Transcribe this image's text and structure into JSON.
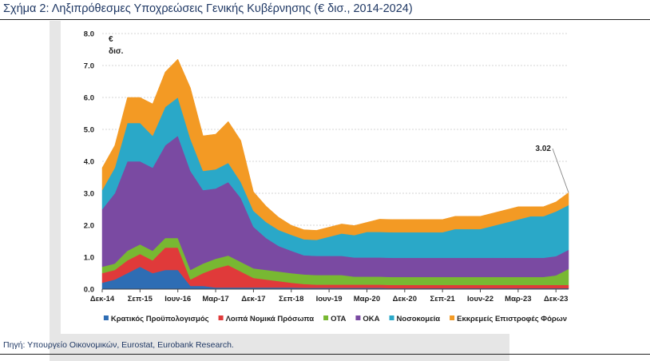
{
  "figure": {
    "title": "Σχήμα 2: Ληξιπρόθεσμες Υποχρεώσεις Γενικής Κυβέρνησης (€ δισ., 2014-2024)",
    "source": "Πηγή: Υπουργείο Οικονομικών, Eurostat, Eurobank Research."
  },
  "chart_data": {
    "type": "area",
    "stacked": true,
    "y_unit_line1": "€",
    "y_unit_line2": "δισ.",
    "ylim": [
      0,
      8
    ],
    "y_ticks": [
      "0.0",
      "1.0",
      "2.0",
      "3.0",
      "4.0",
      "5.0",
      "6.0",
      "7.0",
      "8.0"
    ],
    "x_tick_labels": [
      "Δεκ-14",
      "Σεπ-15",
      "Ιουν-16",
      "Μαρ-17",
      "Δεκ-17",
      "Σεπ-18",
      "Ιουν-19",
      "Μαρ-20",
      "Δεκ-20",
      "Σεπ-21",
      "Ιουν-22",
      "Μαρ-23",
      "Δεκ-23"
    ],
    "x": [
      "Δεκ-14",
      "Μαρ-15",
      "Ιουν-15",
      "Σεπ-15",
      "Δεκ-15",
      "Μαρ-16",
      "Ιουν-16",
      "Σεπ-16",
      "Δεκ-16",
      "Μαρ-17",
      "Ιουν-17",
      "Σεπ-17",
      "Δεκ-17",
      "Μαρ-18",
      "Ιουν-18",
      "Σεπ-18",
      "Δεκ-18",
      "Μαρ-19",
      "Ιουν-19",
      "Σεπ-19",
      "Δεκ-19",
      "Μαρ-20",
      "Ιουν-20",
      "Σεπ-20",
      "Δεκ-20",
      "Μαρ-21",
      "Ιουν-21",
      "Σεπ-21",
      "Δεκ-21",
      "Μαρ-22",
      "Ιουν-22",
      "Σεπ-22",
      "Δεκ-22",
      "Μαρ-23",
      "Ιουν-23",
      "Σεπ-23",
      "Δεκ-23",
      "Μαρ-24"
    ],
    "series": [
      {
        "name": "Κρατικός Προϋπολογισμός",
        "color": "#2e6db4",
        "values": [
          0.2,
          0.3,
          0.5,
          0.7,
          0.5,
          0.6,
          0.6,
          0.1,
          0.1,
          0.05,
          0.05,
          0.05,
          0.05,
          0.05,
          0.05,
          0.05,
          0.04,
          0.04,
          0.04,
          0.04,
          0.04,
          0.04,
          0.04,
          0.03,
          0.03,
          0.03,
          0.03,
          0.03,
          0.03,
          0.03,
          0.03,
          0.03,
          0.03,
          0.03,
          0.03,
          0.03,
          0.03,
          0.03
        ]
      },
      {
        "name": "Λοιπά Νομικά Πρόσωπα",
        "color": "#e03a3a",
        "values": [
          0.3,
          0.3,
          0.4,
          0.4,
          0.4,
          0.7,
          0.7,
          0.2,
          0.4,
          0.6,
          0.7,
          0.5,
          0.3,
          0.25,
          0.2,
          0.15,
          0.12,
          0.1,
          0.1,
          0.1,
          0.1,
          0.1,
          0.1,
          0.1,
          0.1,
          0.1,
          0.1,
          0.1,
          0.1,
          0.1,
          0.1,
          0.1,
          0.1,
          0.1,
          0.1,
          0.1,
          0.1,
          0.1
        ]
      },
      {
        "name": "ΟΤΑ",
        "color": "#78b832",
        "values": [
          0.2,
          0.2,
          0.3,
          0.3,
          0.3,
          0.3,
          0.3,
          0.3,
          0.3,
          0.3,
          0.3,
          0.3,
          0.3,
          0.3,
          0.3,
          0.3,
          0.3,
          0.3,
          0.3,
          0.3,
          0.25,
          0.25,
          0.25,
          0.25,
          0.25,
          0.25,
          0.25,
          0.25,
          0.25,
          0.25,
          0.25,
          0.25,
          0.25,
          0.25,
          0.25,
          0.25,
          0.3,
          0.5
        ]
      },
      {
        "name": "ΟΚΑ",
        "color": "#7a4aa2",
        "values": [
          1.8,
          2.2,
          2.8,
          2.6,
          2.6,
          2.9,
          3.2,
          3.1,
          2.3,
          2.2,
          2.3,
          2.0,
          1.3,
          1.0,
          0.8,
          0.7,
          0.6,
          0.6,
          0.6,
          0.6,
          0.6,
          0.6,
          0.6,
          0.6,
          0.6,
          0.6,
          0.6,
          0.6,
          0.6,
          0.6,
          0.6,
          0.6,
          0.6,
          0.6,
          0.6,
          0.6,
          0.6,
          0.6
        ]
      },
      {
        "name": "Νοσοκομεία",
        "color": "#2aa8c8",
        "values": [
          0.6,
          0.8,
          1.2,
          1.2,
          1.0,
          1.2,
          1.2,
          1.0,
          0.6,
          0.6,
          0.6,
          0.5,
          0.5,
          0.5,
          0.5,
          0.5,
          0.5,
          0.5,
          0.6,
          0.7,
          0.7,
          0.8,
          0.8,
          0.8,
          0.8,
          0.8,
          0.8,
          0.8,
          0.9,
          0.9,
          0.9,
          1.0,
          1.1,
          1.2,
          1.3,
          1.3,
          1.4,
          1.4
        ]
      },
      {
        "name": "Εκκρεμείς Επιστροφές Φόρων",
        "color": "#f39a24",
        "values": [
          0.7,
          0.7,
          0.8,
          0.8,
          1.0,
          1.1,
          1.2,
          1.6,
          1.1,
          1.1,
          1.3,
          1.3,
          0.6,
          0.5,
          0.4,
          0.3,
          0.3,
          0.3,
          0.3,
          0.3,
          0.3,
          0.3,
          0.4,
          0.4,
          0.4,
          0.4,
          0.4,
          0.4,
          0.4,
          0.4,
          0.4,
          0.4,
          0.4,
          0.4,
          0.3,
          0.3,
          0.3,
          0.39
        ]
      }
    ],
    "annotations": [
      {
        "text": "3.02",
        "x": "Μαρ-24",
        "y": 3.02
      }
    ],
    "legend_position": "bottom",
    "grid": true
  }
}
